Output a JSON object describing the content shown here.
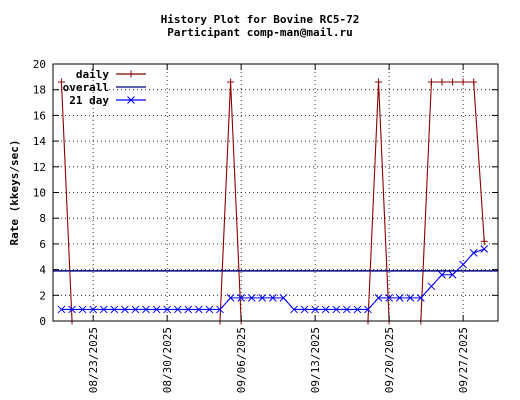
{
  "chart_data": {
    "type": "line",
    "title": "History Plot for Bovine RC5-72",
    "subtitle": "Participant comp-man@mail.ru",
    "xlabel": "",
    "ylabel": "Rate (kkeys/sec)",
    "ylim": [
      0,
      20
    ],
    "yticks": [
      0,
      2,
      4,
      6,
      8,
      10,
      12,
      14,
      16,
      18,
      20
    ],
    "xlim": [
      "2025-08-20",
      "2025-09-30"
    ],
    "xticks": [
      "08/23/2025",
      "08/30/2025",
      "09/06/2025",
      "09/13/2025",
      "09/20/2025",
      "09/27/2025"
    ],
    "grid": true,
    "legend_position": "top-left",
    "colors": {
      "daily": "#8b0000",
      "overall": "#000080",
      "21day": "#0000ff"
    },
    "series": [
      {
        "name": "daily",
        "marker": "plus",
        "points": [
          [
            "2025-08-20",
            18.6
          ],
          [
            "2025-08-21",
            0
          ],
          [
            "2025-09-04",
            0
          ],
          [
            "2025-09-05",
            18.6
          ],
          [
            "2025-09-06",
            0
          ],
          [
            "2025-09-18",
            0
          ],
          [
            "2025-09-19",
            18.6
          ],
          [
            "2025-09-20",
            0
          ],
          [
            "2025-09-23",
            0
          ],
          [
            "2025-09-24",
            18.6
          ],
          [
            "2025-09-25",
            18.6
          ],
          [
            "2025-09-26",
            18.6
          ],
          [
            "2025-09-27",
            18.6
          ],
          [
            "2025-09-28",
            18.6
          ],
          [
            "2025-09-29",
            6.2
          ]
        ]
      },
      {
        "name": "overall",
        "marker": "none",
        "points": [
          [
            "2025-08-20",
            3.9
          ],
          [
            "2025-09-30",
            3.9
          ]
        ]
      },
      {
        "name": "21 day",
        "marker": "x",
        "points": [
          [
            "2025-08-20",
            0.9
          ],
          [
            "2025-08-21",
            0.9
          ],
          [
            "2025-08-22",
            0.9
          ],
          [
            "2025-08-23",
            0.9
          ],
          [
            "2025-08-24",
            0.9
          ],
          [
            "2025-08-25",
            0.9
          ],
          [
            "2025-08-26",
            0.9
          ],
          [
            "2025-08-27",
            0.9
          ],
          [
            "2025-08-28",
            0.9
          ],
          [
            "2025-08-29",
            0.9
          ],
          [
            "2025-08-30",
            0.9
          ],
          [
            "2025-08-31",
            0.9
          ],
          [
            "2025-09-01",
            0.9
          ],
          [
            "2025-09-02",
            0.9
          ],
          [
            "2025-09-03",
            0.9
          ],
          [
            "2025-09-04",
            0.9
          ],
          [
            "2025-09-05",
            1.8
          ],
          [
            "2025-09-06",
            1.8
          ],
          [
            "2025-09-07",
            1.8
          ],
          [
            "2025-09-08",
            1.8
          ],
          [
            "2025-09-09",
            1.8
          ],
          [
            "2025-09-10",
            1.8
          ],
          [
            "2025-09-11",
            0.9
          ],
          [
            "2025-09-12",
            0.9
          ],
          [
            "2025-09-13",
            0.9
          ],
          [
            "2025-09-14",
            0.9
          ],
          [
            "2025-09-15",
            0.9
          ],
          [
            "2025-09-16",
            0.9
          ],
          [
            "2025-09-17",
            0.9
          ],
          [
            "2025-09-18",
            0.9
          ],
          [
            "2025-09-19",
            1.8
          ],
          [
            "2025-09-20",
            1.8
          ],
          [
            "2025-09-21",
            1.8
          ],
          [
            "2025-09-22",
            1.8
          ],
          [
            "2025-09-23",
            1.8
          ],
          [
            "2025-09-24",
            2.7
          ],
          [
            "2025-09-25",
            3.6
          ],
          [
            "2025-09-26",
            3.6
          ],
          [
            "2025-09-27",
            4.4
          ],
          [
            "2025-09-28",
            5.3
          ],
          [
            "2025-09-29",
            5.6
          ]
        ]
      }
    ]
  }
}
